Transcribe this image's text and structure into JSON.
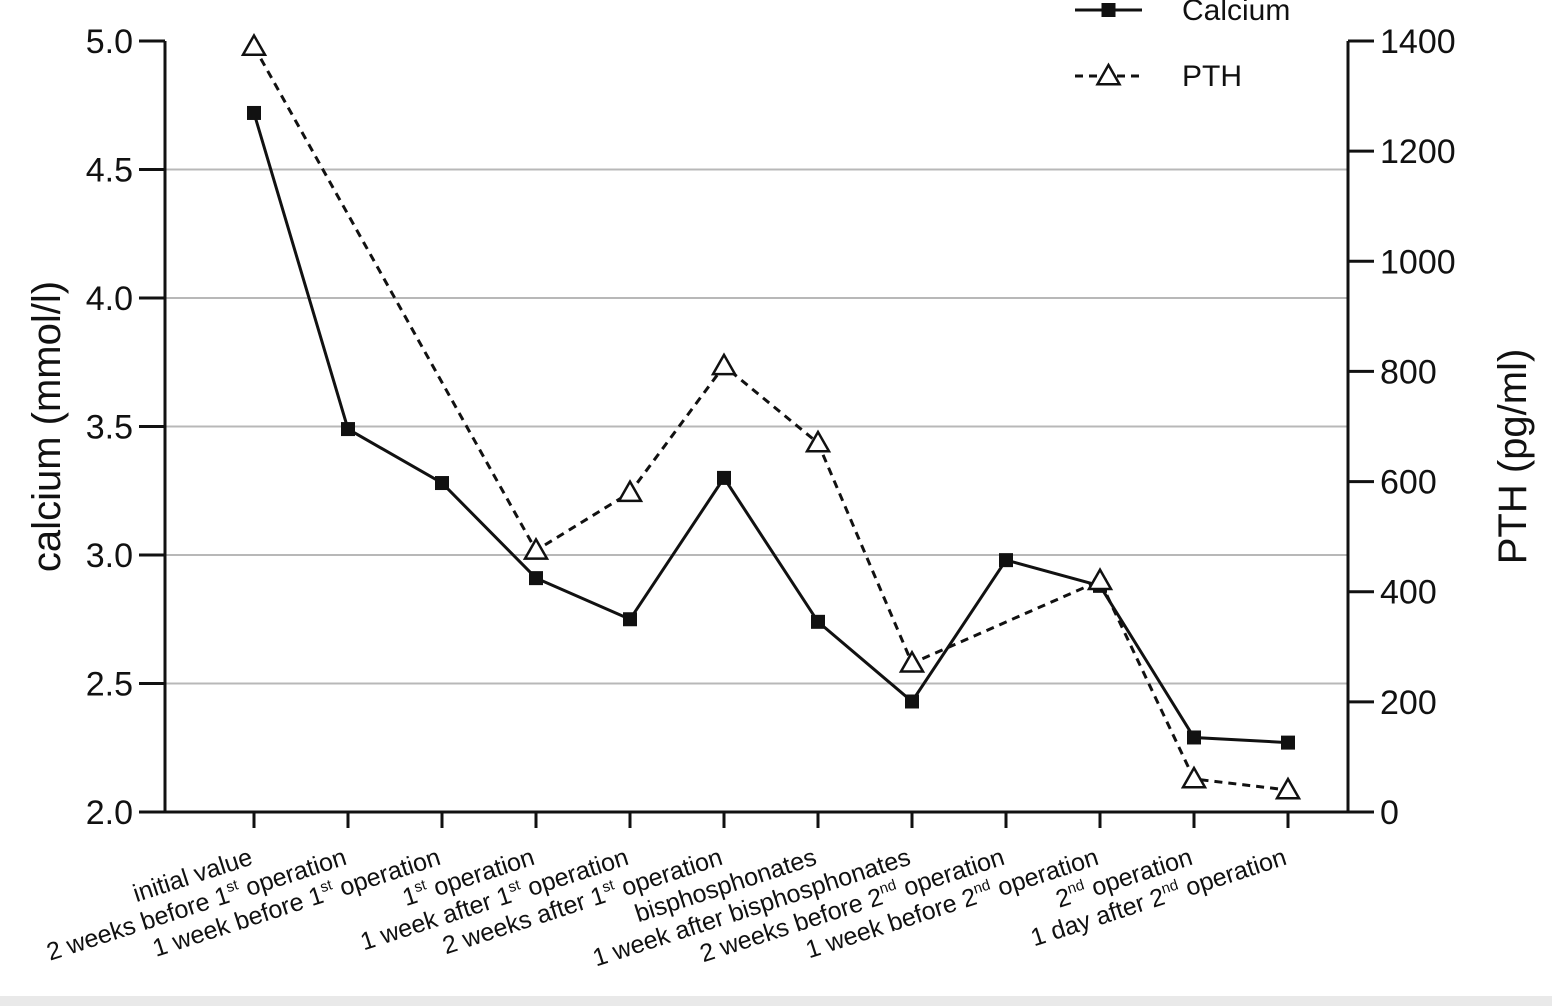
{
  "colors": {
    "line": "#111111",
    "grid": "#b8b8b8",
    "axis": "#111111"
  },
  "chart_data": {
    "type": "line",
    "title": "",
    "ylabel_left": "calcium (mmol/l)",
    "ylabel_right": "PTH (pg/ml)",
    "grid": true,
    "legend_position": "top-right",
    "left_axis": {
      "ylim": [
        2.0,
        5.0
      ],
      "ticks": [
        "2.0",
        "2.5",
        "3.0",
        "3.5",
        "4.0",
        "4.5",
        "5.0"
      ]
    },
    "right_axis": {
      "ylim": [
        0,
        1400
      ],
      "ticks": [
        "0",
        "200",
        "400",
        "600",
        "800",
        "1000",
        "1200",
        "1400"
      ]
    },
    "categories": [
      {
        "pre": "initial value",
        "sup": "",
        "post": ""
      },
      {
        "pre": "2 weeks before 1",
        "sup": "st",
        "post": " operation"
      },
      {
        "pre": "1 week before 1",
        "sup": "st",
        "post": " operation"
      },
      {
        "pre": "1",
        "sup": "st",
        "post": " operation"
      },
      {
        "pre": "1 week after 1",
        "sup": "st",
        "post": " operation"
      },
      {
        "pre": "2 weeks after 1",
        "sup": "st",
        "post": " operation"
      },
      {
        "pre": "bisphosphonates",
        "sup": "",
        "post": ""
      },
      {
        "pre": "1 week after bisphosphonates",
        "sup": "",
        "post": ""
      },
      {
        "pre": "2 weeks before 2",
        "sup": "nd",
        "post": " operation"
      },
      {
        "pre": "1 week before 2",
        "sup": "nd",
        "post": " operation"
      },
      {
        "pre": "2",
        "sup": "nd",
        "post": " operation"
      },
      {
        "pre": "1 day after 2",
        "sup": "nd",
        "post": " operation"
      }
    ],
    "series": [
      {
        "name": "Calcium",
        "axis": "left",
        "style": "solid",
        "marker": "square",
        "points": [
          [
            0,
            4.72
          ],
          [
            1,
            3.49
          ],
          [
            2,
            3.28
          ],
          [
            3,
            2.91
          ],
          [
            4,
            2.75
          ],
          [
            5,
            3.3
          ],
          [
            6,
            2.74
          ],
          [
            7,
            2.43
          ],
          [
            8,
            2.98
          ],
          [
            9,
            2.88
          ],
          [
            10,
            2.29
          ],
          [
            11,
            2.27
          ]
        ]
      },
      {
        "name": "PTH",
        "axis": "right",
        "style": "dashed",
        "marker": "triangle-open",
        "points": [
          [
            0,
            1390
          ],
          [
            3,
            475
          ],
          [
            4,
            580
          ],
          [
            5,
            810
          ],
          [
            6,
            670
          ],
          [
            7,
            270
          ],
          [
            9,
            420
          ],
          [
            10,
            60
          ],
          [
            11,
            40
          ]
        ]
      }
    ]
  }
}
